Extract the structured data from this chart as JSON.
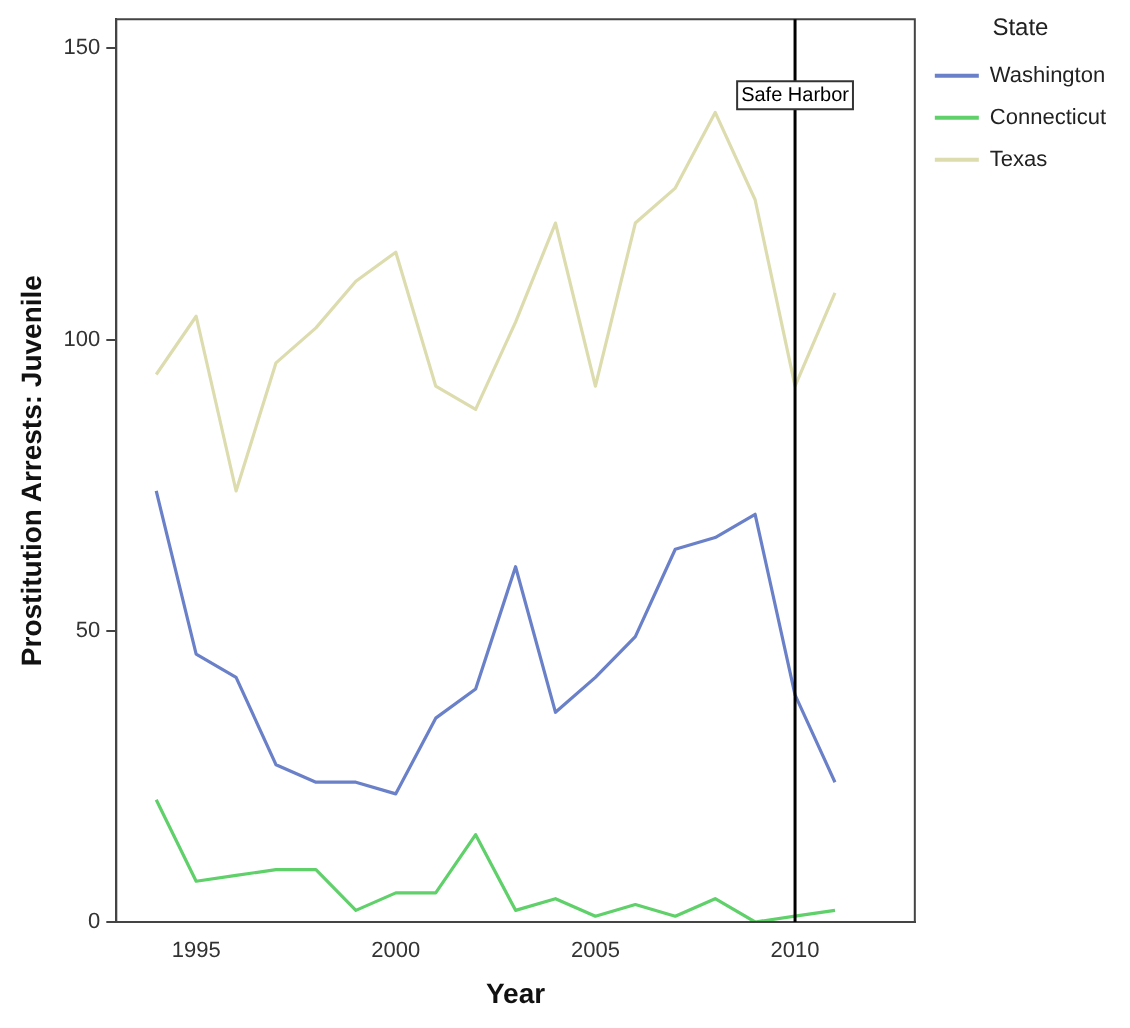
{
  "chart_data": {
    "type": "line",
    "xlabel": "Year",
    "ylabel": "Prostitution Arrests: Juvenile",
    "legend_title": "State",
    "x": [
      1994,
      1995,
      1996,
      1997,
      1998,
      1999,
      2000,
      2001,
      2002,
      2003,
      2004,
      2005,
      2006,
      2007,
      2008,
      2009,
      2010,
      2011
    ],
    "series": [
      {
        "name": "Washington",
        "color": "#6a80c8",
        "values": [
          74,
          46,
          42,
          27,
          24,
          24,
          22,
          35,
          40,
          61,
          36,
          42,
          49,
          64,
          66,
          70,
          39,
          24
        ]
      },
      {
        "name": "Connecticut",
        "color": "#5fd06a",
        "values": [
          21,
          7,
          8,
          9,
          9,
          2,
          5,
          5,
          15,
          2,
          4,
          1,
          3,
          1,
          4,
          0,
          1,
          2
        ]
      },
      {
        "name": "Texas",
        "color": "#dcdcae",
        "values": [
          94,
          104,
          74,
          96,
          102,
          110,
          115,
          92,
          88,
          103,
          120,
          92,
          120,
          126,
          139,
          124,
          92,
          108
        ]
      }
    ],
    "xlim": [
      1993,
      2013
    ],
    "xticks": [
      1995,
      2000,
      2005,
      2010
    ],
    "ylim": [
      0,
      155
    ],
    "yticks": [
      0,
      50,
      100,
      150
    ],
    "ref_lines": [
      {
        "axis": "x",
        "value": 2010,
        "label": "Safe Harbor",
        "color": "#000000"
      }
    ],
    "grid": false,
    "legend": "right",
    "marker": "none",
    "line_style": "solid"
  }
}
